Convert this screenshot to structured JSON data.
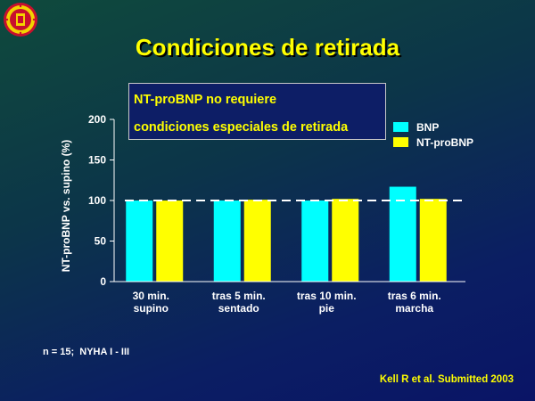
{
  "slide": {
    "title": "Condiciones de retirada",
    "note_lines": [
      "NT-proBNP no requiere",
      "condiciones especiales de retirada"
    ],
    "footer_left": "n = 15;  NYHA I - III",
    "footer_right": "Kell R et al. Submitted 2003"
  },
  "colors": {
    "bnp": "#00ffff",
    "ntprobnp": "#ffff00",
    "title": "#ffff00",
    "text": "#ffffff"
  },
  "chart_data": {
    "type": "bar",
    "title": "",
    "xlabel": "",
    "ylabel": "NT-proBNP vs. supino (%)",
    "ylim": [
      0,
      200
    ],
    "yticks": [
      0,
      50,
      100,
      150,
      200
    ],
    "reference_line": 100,
    "grid": false,
    "legend_position": "right",
    "categories": [
      [
        "30 min.",
        "supino"
      ],
      [
        "tras 5 min.",
        "sentado"
      ],
      [
        "tras 10 min.",
        "pie"
      ],
      [
        "tras 6 min.",
        "marcha"
      ]
    ],
    "series": [
      {
        "name": "BNP",
        "color": "#00ffff",
        "values": [
          100,
          100,
          100,
          117
        ]
      },
      {
        "name": "NT-proBNP",
        "color": "#ffff00",
        "values": [
          100,
          101,
          102,
          102
        ]
      }
    ]
  }
}
